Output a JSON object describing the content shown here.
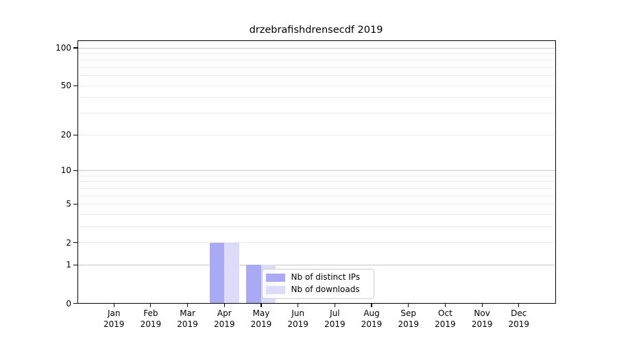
{
  "title": "drzebrafishdrensecdf 2019",
  "legend": {
    "items": [
      {
        "label": "Nb of distinct IPs",
        "color": "#a9a9f4"
      },
      {
        "label": "Nb of downloads",
        "color": "#dcdcf8"
      }
    ]
  },
  "colors": {
    "background": "#ffffff",
    "axis": "#000000",
    "grid_major": "#c6c6c6",
    "grid_minor": "#ebebeb",
    "legend_border": "#cccccc"
  },
  "chart_data": {
    "type": "bar",
    "title": "drzebrafishdrensecdf 2019",
    "categories": [
      {
        "label": "Jan",
        "sub": "2019"
      },
      {
        "label": "Feb",
        "sub": "2019"
      },
      {
        "label": "Mar",
        "sub": "2019"
      },
      {
        "label": "Apr",
        "sub": "2019"
      },
      {
        "label": "May",
        "sub": "2019"
      },
      {
        "label": "Jun",
        "sub": "2019"
      },
      {
        "label": "Jul",
        "sub": "2019"
      },
      {
        "label": "Aug",
        "sub": "2019"
      },
      {
        "label": "Sep",
        "sub": "2019"
      },
      {
        "label": "Oct",
        "sub": "2019"
      },
      {
        "label": "Nov",
        "sub": "2019"
      },
      {
        "label": "Dec",
        "sub": "2019"
      }
    ],
    "series": [
      {
        "name": "Nb of distinct IPs",
        "color": "#a9a9f4",
        "values": [
          0,
          0,
          0,
          2,
          1,
          0,
          0,
          0,
          0,
          0,
          0,
          0
        ]
      },
      {
        "name": "Nb of downloads",
        "color": "#dcdcf8",
        "values": [
          0,
          0,
          0,
          2,
          1,
          0,
          0,
          0,
          0,
          0,
          0,
          0
        ]
      }
    ],
    "xlabel": "",
    "ylabel": "",
    "yscale": "log1p",
    "yticks": [
      0,
      1,
      2,
      5,
      10,
      20,
      50,
      100
    ],
    "grid_major": [
      1,
      10,
      100
    ],
    "grid_minor": [
      2,
      3,
      4,
      5,
      6,
      7,
      8,
      9,
      20,
      30,
      40,
      50,
      60,
      70,
      80,
      90
    ],
    "ylim": [
      0,
      115
    ],
    "grid": true,
    "legend_position": "inside lower center"
  }
}
